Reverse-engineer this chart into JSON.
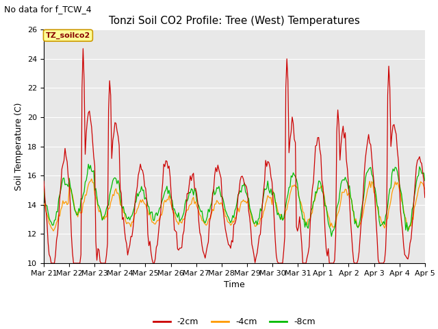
{
  "title": "Tonzi Soil CO2 Profile: Tree (West) Temperatures",
  "subtitle": "No data for f_TCW_4",
  "ylabel": "Soil Temperature (C)",
  "xlabel": "Time",
  "ylim": [
    10,
    26
  ],
  "xtick_labels": [
    "Mar 21",
    "Mar 22",
    "Mar 23",
    "Mar 24",
    "Mar 25",
    "Mar 26",
    "Mar 27",
    "Mar 28",
    "Mar 29",
    "Mar 30",
    "Mar 31",
    "Apr 1",
    "Apr 2",
    "Apr 3",
    "Apr 4",
    "Apr 5"
  ],
  "legend_labels": [
    "-2cm",
    "-4cm",
    "-8cm"
  ],
  "line_colors": [
    "#cc0000",
    "#ff9900",
    "#00bb00"
  ],
  "annotation_text": "TZ_soilco2",
  "annotation_bg": "#ffff99",
  "annotation_border": "#cc9900",
  "bg_color": "#e8e8e8",
  "title_fontsize": 11,
  "axis_fontsize": 9,
  "tick_fontsize": 8,
  "subtitle_fontsize": 9
}
